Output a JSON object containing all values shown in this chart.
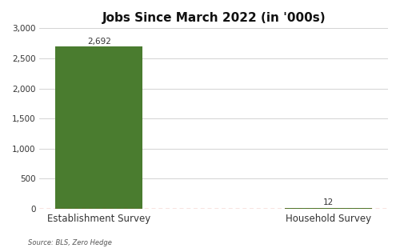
{
  "categories": [
    "Establishment Survey",
    "Household Survey"
  ],
  "values": [
    2692,
    12
  ],
  "bar_colors": [
    "#4a7c2f",
    "#4a7c2f"
  ],
  "title": "Jobs Since March 2022 (in '000s)",
  "title_fontsize": 11,
  "ylim": [
    0,
    3000
  ],
  "yticks": [
    0,
    500,
    1000,
    1500,
    2000,
    2500,
    3000
  ],
  "bar_labels": [
    "2,692",
    "12"
  ],
  "zero_line_color": "#cc2200",
  "zero_line_style": "--",
  "source_text": "Source: BLS, Zero Hedge",
  "background_color": "#ffffff",
  "bar_width": 0.38
}
